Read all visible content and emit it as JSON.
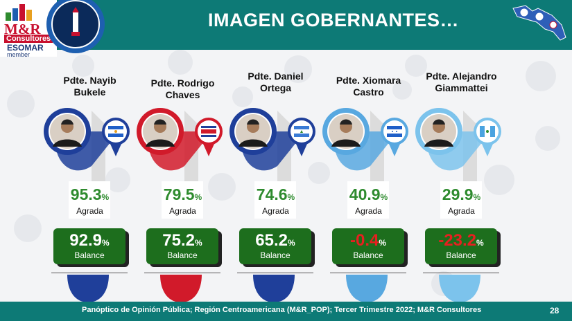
{
  "header": {
    "title": "IMAGEN GOBERNANTES…",
    "logo_brand": "M&R",
    "logo_sub": "Consultores",
    "logo_esomar": "ESOMAR",
    "logo_member": "member"
  },
  "leaders": [
    {
      "name": "Pdte. Nayib Bukele",
      "name_lines": [
        "Pdte. Nayib",
        "Bukele"
      ],
      "agree": "95.3",
      "agree_label": "Agrada",
      "balance": "92.9",
      "balance_label": "Balance",
      "color": "#1f3f9a",
      "country_flag": "El Salvador"
    },
    {
      "name": "Pdte. Rodrigo Chaves",
      "name_lines": [
        "Pdte. Rodrigo",
        "Chaves"
      ],
      "agree": "79.5",
      "agree_label": "Agrada",
      "balance": "75.2",
      "balance_label": "Balance",
      "color": "#d11a2a",
      "country_flag": "Costa Rica"
    },
    {
      "name": "Pdte. Daniel Ortega",
      "name_lines": [
        "Pdte. Daniel",
        "Ortega"
      ],
      "agree": "74.6",
      "agree_label": "Agrada",
      "balance": "65.2",
      "balance_label": "Balance",
      "color": "#1f3f9a",
      "country_flag": "Nicaragua"
    },
    {
      "name": "Pdte. Xiomara Castro",
      "name_lines": [
        "Pdte. Xiomara",
        "Castro"
      ],
      "agree": "40.9",
      "agree_label": "Agrada",
      "balance": "-0.4",
      "balance_label": "Balance",
      "color": "#58a8e0",
      "country_flag": "Honduras"
    },
    {
      "name": "Pdte. Alejandro Giammattei",
      "name_lines": [
        "Pdte. Alejandro",
        "Giammattei"
      ],
      "agree": "29.9",
      "agree_label": "Agrada",
      "balance": "-23.2",
      "balance_label": "Balance",
      "color": "#7cc3ec",
      "country_flag": "Guatemala"
    }
  ],
  "pct_symbol": "%",
  "footer": {
    "source": "Panóptico de Opinión Pública; Región Centroamericana (M&R_POP); Tercer Trimestre 2022; M&R Consultores",
    "page": "28"
  },
  "colors": {
    "teal": "#0d7a76",
    "agree_green": "#2e8b2e",
    "balance_box": "#1d6e1d",
    "negative_red": "#e62020"
  },
  "chart_data": {
    "type": "table",
    "title": "IMAGEN GOBERNANTES…",
    "categories": [
      "Pdte. Nayib Bukele",
      "Pdte. Rodrigo Chaves",
      "Pdte. Daniel Ortega",
      "Pdte. Xiomara Castro",
      "Pdte. Alejandro Giammattei"
    ],
    "series": [
      {
        "name": "Agrada",
        "values": [
          95.3,
          79.5,
          74.6,
          40.9,
          29.9
        ]
      },
      {
        "name": "Balance",
        "values": [
          92.9,
          75.2,
          65.2,
          -0.4,
          -23.2
        ]
      }
    ],
    "unit": "%"
  }
}
